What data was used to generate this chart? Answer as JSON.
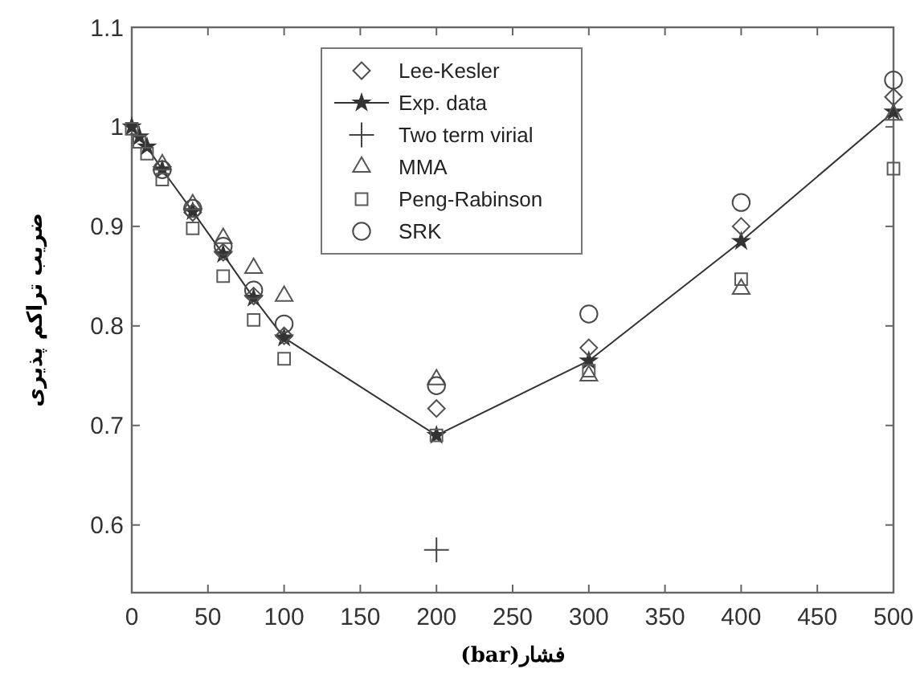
{
  "chart_data": {
    "type": "scatter",
    "xlabel": "فشار(bar)",
    "ylabel": "ضریب تراکم پذیری",
    "x": [
      0,
      5,
      10,
      20,
      40,
      60,
      80,
      100,
      200,
      300,
      400,
      500
    ],
    "xlim": [
      0,
      500
    ],
    "ylim": [
      0.532,
      1.1
    ],
    "xticks": [
      0,
      50,
      100,
      150,
      200,
      250,
      300,
      350,
      400,
      450,
      500
    ],
    "yticks": [
      0.6,
      0.7,
      0.8,
      0.9,
      1,
      1.1
    ],
    "grid": false,
    "legend": "top",
    "series": [
      {
        "name": "Lee-Kesler",
        "color": "#505050",
        "marker": "diamond",
        "values": [
          null,
          null,
          null,
          null,
          0.914,
          0.874,
          0.83,
          0.79,
          0.717,
          0.778,
          0.9,
          1.03
        ]
      },
      {
        "name": "Exp. data",
        "type": "line",
        "color": "#333333",
        "marker": "star",
        "line_style": "solid",
        "values": [
          1.0,
          0.99,
          0.98,
          0.957,
          0.915,
          0.872,
          0.828,
          0.788,
          0.69,
          0.765,
          0.885,
          1.015
        ]
      },
      {
        "name": "Two term virial",
        "color": "#444444",
        "marker": "cross",
        "values": [
          null,
          null,
          null,
          null,
          null,
          null,
          null,
          null,
          0.575,
          null,
          null,
          null
        ]
      },
      {
        "name": "MMA",
        "color": "#555555",
        "marker": "triangle",
        "values": [
          null,
          null,
          null,
          0.962,
          0.922,
          0.888,
          0.858,
          0.83,
          0.746,
          0.75,
          0.837,
          1.012
        ]
      },
      {
        "name": "Peng-Rabinson",
        "color": "#5a5a5a",
        "marker": "square",
        "values": [
          0.998,
          0.985,
          0.973,
          0.947,
          0.898,
          0.85,
          0.806,
          0.767,
          0.69,
          0.755,
          0.847,
          0.958
        ]
      },
      {
        "name": "SRK",
        "color": "#4a4a4a",
        "marker": "circle",
        "values": [
          null,
          null,
          null,
          0.957,
          0.918,
          0.88,
          0.836,
          0.802,
          0.74,
          0.812,
          0.924,
          1.047
        ]
      }
    ]
  }
}
